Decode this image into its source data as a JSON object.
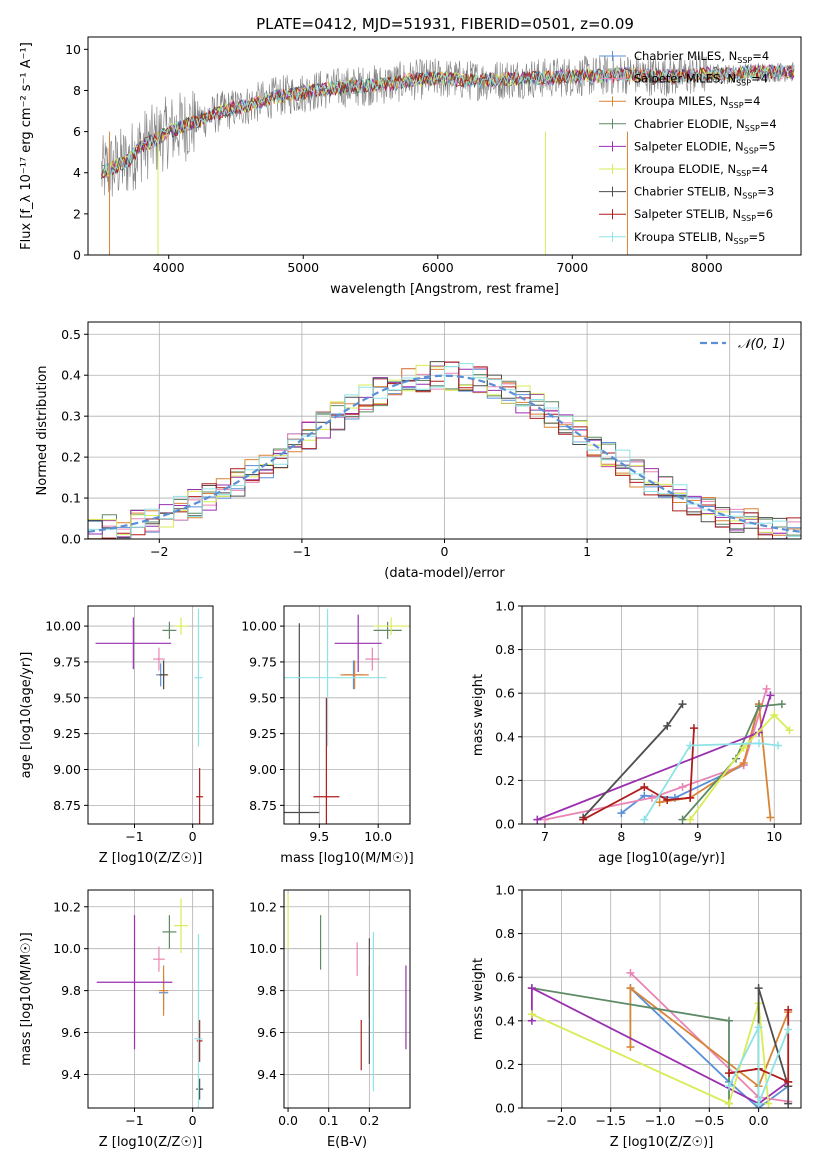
{
  "title": "PLATE=0412, MJD=51931, FIBERID=0501, z=0.09",
  "models": [
    {
      "name": "Chabrier MILES",
      "nssp": "4",
      "color": "#5b8fd6"
    },
    {
      "name": "Salpeter MILES",
      "nssp": "4",
      "color": "#e985b4"
    },
    {
      "name": "Kroupa MILES",
      "nssp": "4",
      "color": "#d98435"
    },
    {
      "name": "Chabrier ELODIE",
      "nssp": "4",
      "color": "#5f8a65"
    },
    {
      "name": "Salpeter ELODIE",
      "nssp": "5",
      "color": "#9a2fb0"
    },
    {
      "name": "Kroupa ELODIE",
      "nssp": "4",
      "color": "#d9ec55"
    },
    {
      "name": "Chabrier STELIB",
      "nssp": "3",
      "color": "#4d4d4d"
    },
    {
      "name": "Salpeter STELIB",
      "nssp": "6",
      "color": "#b01c1c"
    },
    {
      "name": "Kroupa STELIB",
      "nssp": "5",
      "color": "#8fe3e6"
    }
  ],
  "chart_data": [
    {
      "id": "spectrum",
      "type": "line",
      "xlabel": "wavelength [Angstrom, rest frame]",
      "ylabel": "Flux [f_λ 10⁻¹⁷ erg cm⁻² s⁻¹ A⁻¹]",
      "xlim": [
        3400,
        8700
      ],
      "ylim": [
        0,
        10.6
      ],
      "xticks": [
        4000,
        5000,
        6000,
        7000,
        8000
      ],
      "yticks": [
        0,
        2,
        4,
        6,
        8,
        10
      ],
      "grid": false,
      "legend": "upper-right",
      "continuum": [
        [
          3500,
          4.0
        ],
        [
          3600,
          4.3
        ],
        [
          3700,
          4.6
        ],
        [
          3800,
          5.3
        ],
        [
          3900,
          5.6
        ],
        [
          4000,
          6.0
        ],
        [
          4200,
          6.5
        ],
        [
          4400,
          7.0
        ],
        [
          4600,
          7.3
        ],
        [
          4800,
          7.7
        ],
        [
          5000,
          7.9
        ],
        [
          5200,
          8.1
        ],
        [
          5400,
          8.2
        ],
        [
          5600,
          8.3
        ],
        [
          5800,
          8.5
        ],
        [
          6000,
          8.6
        ],
        [
          6200,
          8.5
        ],
        [
          6400,
          8.5
        ],
        [
          6600,
          8.6
        ],
        [
          6800,
          8.6
        ],
        [
          7000,
          8.7
        ],
        [
          7200,
          8.7
        ],
        [
          7400,
          8.8
        ],
        [
          7600,
          8.7
        ],
        [
          7800,
          8.7
        ],
        [
          8000,
          8.8
        ],
        [
          8200,
          8.8
        ],
        [
          8400,
          8.9
        ],
        [
          8600,
          8.9
        ]
      ]
    },
    {
      "id": "residuals",
      "type": "histogram",
      "xlabel": "(data-model)/error",
      "ylabel": "Normed distribution",
      "xlim": [
        -2.5,
        2.5
      ],
      "ylim": [
        0,
        0.53
      ],
      "xticks": [
        -2,
        -1,
        0,
        1,
        2
      ],
      "yticks": [
        0.0,
        0.1,
        0.2,
        0.3,
        0.4,
        0.5
      ],
      "grid": true,
      "legend": "upper-right",
      "reference_curve": "N(0,1)",
      "bin_width": 0.1
    },
    {
      "id": "age-vs-z",
      "type": "errorbar",
      "xlabel": "Z [log10(Z/Z☉)]",
      "ylabel": "age [log10(age/yr)]",
      "xlim": [
        -1.8,
        0.35
      ],
      "ylim": [
        8.62,
        10.14
      ],
      "xticks": [
        -1,
        0
      ],
      "yticks": [
        8.75,
        9.0,
        9.25,
        9.5,
        9.75,
        10.0
      ],
      "grid": true,
      "points": [
        {
          "model": 0,
          "x": -0.55,
          "y": 9.66,
          "xerr": 0.08,
          "yerr": 0.08
        },
        {
          "model": 1,
          "x": -0.58,
          "y": 9.77,
          "xerr": 0.1,
          "yerr": 0.08
        },
        {
          "model": 2,
          "x": -0.5,
          "y": 9.66,
          "xerr": 0.08,
          "yerr": 0.1
        },
        {
          "model": 3,
          "x": -0.4,
          "y": 9.97,
          "xerr": 0.12,
          "yerr": 0.06
        },
        {
          "model": 4,
          "x": -1.02,
          "y": 9.88,
          "xerr": 0.65,
          "yerr": 0.18
        },
        {
          "model": 5,
          "x": -0.2,
          "y": 10.0,
          "xerr": 0.12,
          "yerr": 0.06
        },
        {
          "model": 6,
          "x": -0.5,
          "y": 9.66,
          "xerr": 0.07,
          "yerr": 0.1
        },
        {
          "model": 7,
          "x": 0.12,
          "y": 8.81,
          "xerr": 0.06,
          "yerr": 0.2
        },
        {
          "model": 8,
          "x": 0.1,
          "y": 9.64,
          "xerr": 0.07,
          "yerr": 0.48
        }
      ]
    },
    {
      "id": "age-vs-mass",
      "type": "errorbar",
      "xlabel": "mass [log10(M/M☉)]",
      "ylabel": "",
      "xlim": [
        9.2,
        10.27
      ],
      "ylim": [
        8.62,
        10.14
      ],
      "xticks": [
        9.5,
        10.0
      ],
      "yticks": [
        8.75,
        9.0,
        9.25,
        9.5,
        9.75,
        10.0
      ],
      "grid": true,
      "points": [
        {
          "model": 0,
          "x": 9.79,
          "y": 9.66,
          "xerr": 0.08,
          "yerr": 0.1
        },
        {
          "model": 1,
          "x": 9.95,
          "y": 9.77,
          "xerr": 0.06,
          "yerr": 0.08
        },
        {
          "model": 2,
          "x": 9.8,
          "y": 9.66,
          "xerr": 0.12,
          "yerr": 0.1
        },
        {
          "model": 3,
          "x": 10.08,
          "y": 9.97,
          "xerr": 0.12,
          "yerr": 0.06
        },
        {
          "model": 4,
          "x": 9.83,
          "y": 9.88,
          "xerr": 0.2,
          "yerr": 0.2
        },
        {
          "model": 5,
          "x": 10.11,
          "y": 10.0,
          "xerr": 0.15,
          "yerr": 0.06
        },
        {
          "model": 6,
          "x": 9.33,
          "y": 8.7,
          "xerr": 0.17,
          "yerr": 1.32
        },
        {
          "model": 7,
          "x": 9.56,
          "y": 8.81,
          "xerr": 0.11,
          "yerr": 0.69
        },
        {
          "model": 8,
          "x": 9.57,
          "y": 9.64,
          "xerr": 0.5,
          "yerr": 0.48
        }
      ]
    },
    {
      "id": "mass-weight-vs-age",
      "type": "line",
      "xlabel": "age [log10(age/yr)]",
      "ylabel": "mass weight",
      "xlim": [
        6.7,
        10.35
      ],
      "ylim": [
        0,
        1.0
      ],
      "xticks": [
        7,
        8,
        9,
        10
      ],
      "yticks": [
        0.0,
        0.2,
        0.4,
        0.6,
        0.8,
        1.0
      ],
      "grid": true,
      "series": [
        {
          "model": 0,
          "x": [
            8.0,
            8.3,
            8.7,
            9.6,
            9.8
          ],
          "y": [
            0.05,
            0.13,
            0.12,
            0.27,
            0.55
          ]
        },
        {
          "model": 1,
          "x": [
            7.0,
            8.4,
            8.8,
            9.6,
            9.9
          ],
          "y": [
            0.02,
            0.12,
            0.17,
            0.27,
            0.62
          ]
        },
        {
          "model": 2,
          "x": [
            8.5,
            8.9,
            9.6,
            9.8,
            9.95
          ],
          "y": [
            0.1,
            0.12,
            0.28,
            0.55,
            0.03
          ]
        },
        {
          "model": 3,
          "x": [
            8.8,
            9.5,
            9.8,
            10.1
          ],
          "y": [
            0.02,
            0.3,
            0.54,
            0.55
          ]
        },
        {
          "model": 4,
          "x": [
            6.9,
            9.8,
            9.95
          ],
          "y": [
            0.02,
            0.42,
            0.59
          ]
        },
        {
          "model": 5,
          "x": [
            8.9,
            9.6,
            10.0,
            10.2
          ],
          "y": [
            0.02,
            0.35,
            0.5,
            0.43
          ]
        },
        {
          "model": 6,
          "x": [
            7.5,
            8.6,
            8.8
          ],
          "y": [
            0.03,
            0.45,
            0.55
          ]
        },
        {
          "model": 7,
          "x": [
            7.5,
            8.3,
            8.6,
            8.9,
            8.95
          ],
          "y": [
            0.02,
            0.17,
            0.11,
            0.12,
            0.44
          ]
        },
        {
          "model": 8,
          "x": [
            8.3,
            8.9,
            9.8,
            10.05
          ],
          "y": [
            0.02,
            0.36,
            0.37,
            0.36
          ]
        }
      ]
    },
    {
      "id": "mass-vs-z",
      "type": "errorbar",
      "xlabel": "Z [log10(Z/Z☉)]",
      "ylabel": "mass [log10(M/M☉)]",
      "xlim": [
        -1.8,
        0.35
      ],
      "ylim": [
        9.24,
        10.28
      ],
      "xticks": [
        -1,
        0
      ],
      "yticks": [
        9.4,
        9.6,
        9.8,
        10.0,
        10.2
      ],
      "grid": true,
      "points": [
        {
          "model": 0,
          "x": -0.5,
          "y": 9.79,
          "xerr": 0.08,
          "yerr": 0.08
        },
        {
          "model": 1,
          "x": -0.58,
          "y": 9.95,
          "xerr": 0.1,
          "yerr": 0.06
        },
        {
          "model": 2,
          "x": -0.5,
          "y": 9.8,
          "xerr": 0.08,
          "yerr": 0.12
        },
        {
          "model": 3,
          "x": -0.4,
          "y": 10.08,
          "xerr": 0.12,
          "yerr": 0.08
        },
        {
          "model": 4,
          "x": -1.0,
          "y": 9.84,
          "xerr": 0.65,
          "yerr": 0.32
        },
        {
          "model": 5,
          "x": -0.2,
          "y": 10.11,
          "xerr": 0.12,
          "yerr": 0.13
        },
        {
          "model": 6,
          "x": 0.12,
          "y": 9.33,
          "xerr": 0.06,
          "yerr": 0.05
        },
        {
          "model": 7,
          "x": 0.12,
          "y": 9.56,
          "xerr": 0.05,
          "yerr": 0.1
        },
        {
          "model": 8,
          "x": 0.1,
          "y": 9.57,
          "xerr": 0.07,
          "yerr": 0.5
        }
      ]
    },
    {
      "id": "mass-vs-ebv",
      "type": "errorbar",
      "xlabel": "E(B-V)",
      "ylabel": "",
      "xlim": [
        -0.01,
        0.3
      ],
      "ylim": [
        9.24,
        10.28
      ],
      "xticks": [
        0.0,
        0.1,
        0.2
      ],
      "yticks": [
        9.4,
        9.6,
        9.8,
        10.0,
        10.2
      ],
      "grid": true,
      "points": [
        {
          "model": 0,
          "x": 0.2,
          "y": 9.79,
          "xerr": 0.0,
          "yerr": 0.12
        },
        {
          "model": 1,
          "x": 0.17,
          "y": 9.95,
          "xerr": 0.0,
          "yerr": 0.08
        },
        {
          "model": 2,
          "x": 0.2,
          "y": 9.8,
          "xerr": 0.0,
          "yerr": 0.12
        },
        {
          "model": 3,
          "x": 0.08,
          "y": 10.03,
          "xerr": 0.0,
          "yerr": 0.13
        },
        {
          "model": 4,
          "x": 0.29,
          "y": 9.72,
          "xerr": 0.0,
          "yerr": 0.2
        },
        {
          "model": 5,
          "x": 0.0,
          "y": 10.13,
          "xerr": 0.0,
          "yerr": 0.13
        },
        {
          "model": 6,
          "x": 0.2,
          "y": 9.75,
          "xerr": 0.0,
          "yerr": 0.3
        },
        {
          "model": 7,
          "x": 0.18,
          "y": 9.54,
          "xerr": 0.0,
          "yerr": 0.12
        },
        {
          "model": 8,
          "x": 0.21,
          "y": 9.7,
          "xerr": 0.0,
          "yerr": 0.38
        }
      ]
    },
    {
      "id": "mass-weight-vs-z",
      "type": "line",
      "xlabel": "Z [log10(Z/Z☉)]",
      "ylabel": "mass weight",
      "xlim": [
        -2.4,
        0.43
      ],
      "ylim": [
        0,
        1.0
      ],
      "xticks": [
        -2.0,
        -1.5,
        -1.0,
        -0.5,
        0.0
      ],
      "yticks": [
        0.0,
        0.2,
        0.4,
        0.6,
        0.8,
        1.0
      ],
      "grid": true,
      "series": [
        {
          "model": 0,
          "x": [
            -1.3,
            -0.3,
            0.0,
            0.3
          ],
          "y": [
            0.55,
            0.12,
            0.0,
            0.1
          ]
        },
        {
          "model": 1,
          "x": [
            -1.3,
            0.0,
            0.3
          ],
          "y": [
            0.62,
            0.05,
            0.03
          ]
        },
        {
          "model": 2,
          "x": [
            -1.3,
            -1.3,
            0.0,
            0.3
          ],
          "y": [
            0.28,
            0.55,
            0.1,
            0.44
          ]
        },
        {
          "model": 3,
          "x": [
            -2.3,
            -0.3,
            -0.3
          ],
          "y": [
            0.55,
            0.4,
            0.02
          ]
        },
        {
          "model": 4,
          "x": [
            -2.3,
            -2.3,
            0.0,
            0.3
          ],
          "y": [
            0.4,
            0.55,
            0.02,
            0.12
          ]
        },
        {
          "model": 5,
          "x": [
            -2.3,
            -0.3,
            0.0,
            0.1
          ],
          "y": [
            0.43,
            0.02,
            0.48,
            0.02
          ]
        },
        {
          "model": 6,
          "x": [
            0.0,
            0.0,
            0.3,
            0.3
          ],
          "y": [
            0.02,
            0.55,
            0.1,
            0.02
          ]
        },
        {
          "model": 7,
          "x": [
            -0.3,
            0.0,
            0.3,
            0.3
          ],
          "y": [
            0.16,
            0.18,
            0.12,
            0.45
          ]
        },
        {
          "model": 8,
          "x": [
            -0.3,
            0.0,
            0.0,
            0.3
          ],
          "y": [
            0.1,
            0.37,
            0.02,
            0.36
          ]
        }
      ]
    }
  ]
}
